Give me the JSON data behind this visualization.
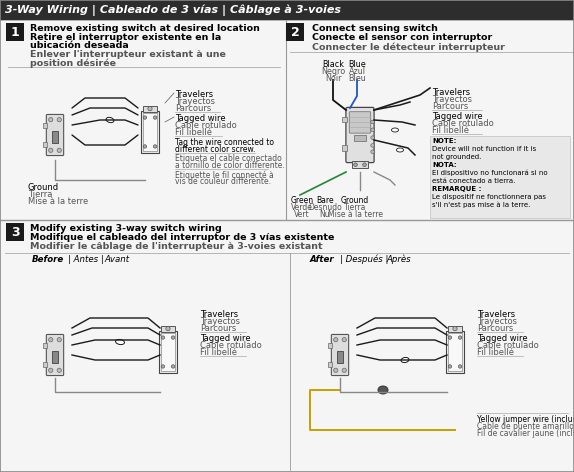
{
  "title": "3-Way Wiring | Cableado de 3 vías | Câblage à 3-voies",
  "title_bg": "#2d2d2d",
  "title_color": "#ffffff",
  "bg_color": "#f5f5f5",
  "step1_lines": [
    [
      "Remove existing switch at desired location",
      "bold",
      "#000000",
      7.0
    ],
    [
      "Retire el interruptor existente en la",
      "bold",
      "#000000",
      7.0
    ],
    [
      "ubicación deseada",
      "bold",
      "#000000",
      7.0
    ],
    [
      "Enlever l'interrupteur existant à une",
      "bold",
      "#444444",
      7.0
    ],
    [
      "position désirée",
      "bold",
      "#444444",
      7.0
    ]
  ],
  "step2_lines": [
    [
      "Connect sensing switch",
      "bold",
      "#000000",
      7.0
    ],
    [
      "Conecte el sensor con interruptor",
      "bold",
      "#000000",
      7.0
    ],
    [
      "Connecter le détecteur interrupteur",
      "bold",
      "#444444",
      7.0
    ]
  ],
  "step3_lines": [
    [
      "Modify existing 3-way switch wiring",
      "bold",
      "#000000",
      7.0
    ],
    [
      "Modifique el cableado del interruptor de 3 vías existente",
      "bold",
      "#000000",
      7.0
    ],
    [
      "Modifier le câblage de l'interrupteur à 3-voies existant",
      "bold",
      "#444444",
      7.0
    ]
  ],
  "step_bg": "#1a1a1a",
  "step_color": "#ffffff",
  "travelers_label": [
    "Travelers",
    "Trayectos",
    "Parcours"
  ],
  "tagged_label": [
    "Tagged wire",
    "Cable rotulado",
    "Fil libellé"
  ],
  "ground_label": [
    "Ground",
    "Tierra",
    "Mise à la terre"
  ],
  "black_label": [
    "Black",
    "Negro",
    "Noir"
  ],
  "blue_label": [
    "Blue",
    "Azul",
    "Bleu"
  ],
  "green_label": [
    "Green",
    "Verde",
    "Vert"
  ],
  "bare_label": [
    "Bare",
    "Desnudo",
    "Nu"
  ],
  "ground_label2": [
    "Ground",
    "Tierra",
    "Mise à la terre"
  ],
  "yellow_label": [
    "Yellow jumper wire (included)",
    "Cable de puente amarillo (incluido)",
    "Fil de cavalier jaune (inclus)"
  ],
  "tag_note": [
    "Tag the wire connected to",
    "different color screw.",
    "Etiqueta el cable conectado",
    "a tornillo de color differente.",
    "Etiquette le fil connecté à",
    "vis de couleur différente."
  ],
  "note_box": [
    "NOTE: Device will",
    "not function if it is",
    "not grounded.",
    "NOTA: El dispositivo",
    "no funcionará si no",
    "está conectado a",
    "tierra.",
    "REMARQUE :",
    "Le dispositif ne",
    "fonctionnera pas",
    "s'il n'est pas mise à",
    "la terre."
  ],
  "note_bold_lines": [
    0,
    3,
    7
  ],
  "before_label": "Before | Antes | Avant",
  "after_label": "After | Después | Après",
  "wire_color": "#1a1a1a",
  "wire_gray": "#888888",
  "yellow_wire_color": "#c8a000",
  "switch_fill": "#e8e8e8",
  "switch_edge": "#333333",
  "divider_color": "#999999",
  "sep_line_color": "#aaaaaa"
}
